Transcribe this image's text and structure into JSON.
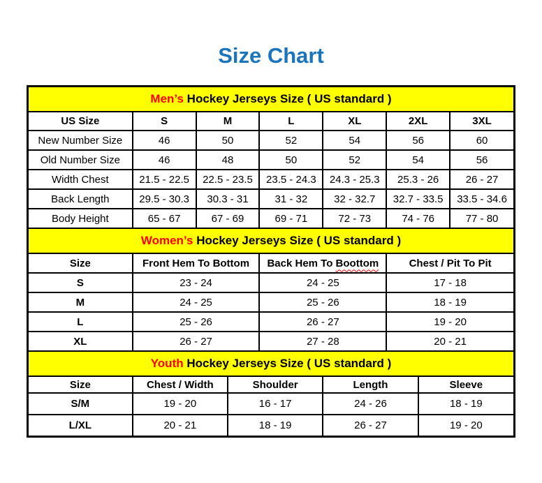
{
  "page": {
    "title": "Size Chart"
  },
  "colors": {
    "title_blue": "#1b75bc",
    "band_yellow": "#ffff00",
    "accent_red": "#ff0000",
    "border_black": "#000000"
  },
  "sections": [
    {
      "id": "mens",
      "band": {
        "highlight": "Men’s",
        "rest": " Hockey Jerseys Size ( US standard )"
      },
      "columns": [
        {
          "label": "US Size"
        },
        {
          "label": "S"
        },
        {
          "label": "M"
        },
        {
          "label": "L"
        },
        {
          "label": "XL"
        },
        {
          "label": "2XL"
        },
        {
          "label": "3XL"
        }
      ],
      "rows": [
        {
          "label": "New Number Size",
          "values": [
            "46",
            "50",
            "52",
            "54",
            "56",
            "60"
          ]
        },
        {
          "label": "Old Number Size",
          "values": [
            "46",
            "48",
            "50",
            "52",
            "54",
            "56"
          ]
        },
        {
          "label": "Width Chest",
          "values": [
            "21.5 - 22.5",
            "22.5 - 23.5",
            "23.5 - 24.3",
            "24.3 - 25.3",
            "25.3 - 26",
            "26 - 27"
          ]
        },
        {
          "label": "Back Length",
          "values": [
            "29.5 - 30.3",
            "30.3 - 31",
            "31 - 32",
            "32 - 32.7",
            "32.7 - 33.5",
            "33.5 - 34.6"
          ]
        },
        {
          "label": "Body Height",
          "values": [
            "65 - 67",
            "67 - 69",
            "69 - 71",
            "72 - 73",
            "74 - 76",
            "77 - 80"
          ]
        }
      ]
    },
    {
      "id": "womens",
      "band": {
        "highlight": "Women’s",
        "rest": " Hockey Jerseys Size ( US standard )"
      },
      "columns": [
        {
          "label": "Size"
        },
        {
          "label": "Front Hem To Bottom"
        },
        {
          "label": "Back Hem To Boottom",
          "squiggle_word": "Boottom"
        },
        {
          "label": "Chest / Pit To Pit"
        }
      ],
      "rows": [
        {
          "label": "S",
          "values": [
            "23 - 24",
            "24 - 25",
            "17 - 18"
          ]
        },
        {
          "label": "M",
          "values": [
            "24 - 25",
            "25 - 26",
            "18 - 19"
          ]
        },
        {
          "label": "L",
          "values": [
            "25 - 26",
            "26 - 27",
            "19 - 20"
          ]
        },
        {
          "label": "XL",
          "values": [
            "26 - 27",
            "27 - 28",
            "20 - 21"
          ]
        }
      ]
    },
    {
      "id": "youth",
      "band": {
        "highlight": "Youth",
        "rest": " Hockey Jerseys Size ( US standard )"
      },
      "columns": [
        {
          "label": "Size"
        },
        {
          "label": "Chest / Width"
        },
        {
          "label": "Shoulder"
        },
        {
          "label": "Length"
        },
        {
          "label": "Sleeve"
        }
      ],
      "rows": [
        {
          "label": "S/M",
          "values": [
            "19 - 20",
            "16 - 17",
            "24 - 26",
            "18 - 19"
          ]
        },
        {
          "label": "L/XL",
          "values": [
            "20 - 21",
            "18 - 19",
            "26 - 27",
            "19 - 20"
          ]
        }
      ]
    }
  ]
}
